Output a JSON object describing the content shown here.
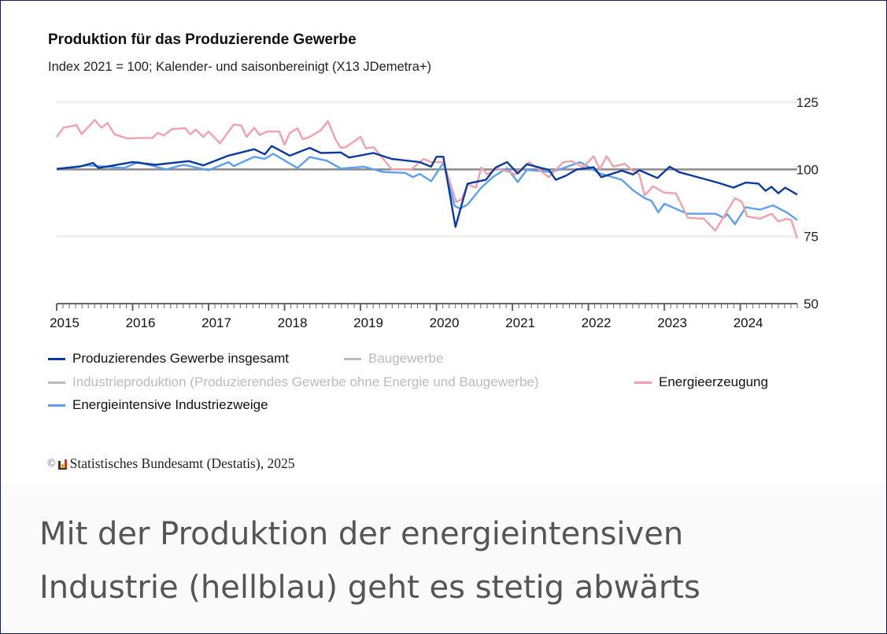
{
  "chart_data": {
    "type": "line",
    "title": "Produktion für das Produzierende Gewerbe",
    "subtitle": "Index 2021 = 100; Kalender- und saisonbereinigt (X13 JDemetra+)",
    "xlabel": "",
    "ylabel": "",
    "xlim": [
      2015.0,
      2024.75
    ],
    "ylim": [
      50,
      125
    ],
    "x_ticks": [
      "2015",
      "2016",
      "2017",
      "2018",
      "2019",
      "2020",
      "2021",
      "2022",
      "2023",
      "2024"
    ],
    "y_ticks": [
      "125",
      "100",
      "75",
      "50"
    ],
    "reference_line": 100,
    "grid": true,
    "legend_placement": "bottom",
    "series": [
      {
        "name": "Produzierendes Gewerbe insgesamt",
        "color": "#0b3a9e",
        "visible": true,
        "points": [
          [
            2015.0,
            100.2
          ],
          [
            2015.3,
            101
          ],
          [
            2015.48,
            102.4
          ],
          [
            2015.55,
            100.5
          ],
          [
            2016.0,
            102.7
          ],
          [
            2016.3,
            101.7
          ],
          [
            2016.74,
            103.1
          ],
          [
            2016.93,
            101.5
          ],
          [
            2017.26,
            105.1
          ],
          [
            2017.6,
            107.5
          ],
          [
            2017.74,
            105.6
          ],
          [
            2017.83,
            108.7
          ],
          [
            2018.07,
            105.1
          ],
          [
            2018.33,
            108
          ],
          [
            2018.48,
            106.1
          ],
          [
            2018.74,
            106.3
          ],
          [
            2018.85,
            104.4
          ],
          [
            2019.17,
            106.1
          ],
          [
            2019.41,
            103.9
          ],
          [
            2019.78,
            102.7
          ],
          [
            2019.93,
            101
          ],
          [
            2020.0,
            104.7
          ],
          [
            2020.09,
            104.7
          ],
          [
            2020.25,
            78.6
          ],
          [
            2020.41,
            94.7
          ],
          [
            2020.65,
            96.1
          ],
          [
            2020.78,
            100.7
          ],
          [
            2020.93,
            102.7
          ],
          [
            2021.07,
            98.5
          ],
          [
            2021.19,
            101.9
          ],
          [
            2021.48,
            99.8
          ],
          [
            2021.57,
            96.1
          ],
          [
            2021.7,
            97.6
          ],
          [
            2021.85,
            100
          ],
          [
            2022.07,
            100.8
          ],
          [
            2022.17,
            97.1
          ],
          [
            2022.44,
            99.5
          ],
          [
            2022.59,
            98.1
          ],
          [
            2022.67,
            99.7
          ],
          [
            2022.91,
            96.8
          ],
          [
            2023.07,
            101
          ],
          [
            2023.19,
            99
          ],
          [
            2023.41,
            97.3
          ],
          [
            2023.7,
            95.1
          ],
          [
            2023.91,
            93.2
          ],
          [
            2024.07,
            95.1
          ],
          [
            2024.24,
            94.7
          ],
          [
            2024.33,
            92
          ],
          [
            2024.41,
            93.5
          ],
          [
            2024.5,
            91.1
          ],
          [
            2024.59,
            93.2
          ],
          [
            2024.75,
            90.6
          ]
        ]
      },
      {
        "name": "Baugewerbe",
        "color": "#bbbbbb",
        "visible": false,
        "points": []
      },
      {
        "name": "Industrieproduktion (Produzierendes Gewerbe ohne Energie und Baugewerbe)",
        "color": "#bbbbbb",
        "visible": false,
        "points": []
      },
      {
        "name": "Energieerzeugung",
        "color": "#f2a0aa",
        "visible": true,
        "points": [
          [
            2015.0,
            112.1
          ],
          [
            2015.09,
            115.5
          ],
          [
            2015.26,
            116.5
          ],
          [
            2015.33,
            113.1
          ],
          [
            2015.5,
            118.4
          ],
          [
            2015.59,
            115.5
          ],
          [
            2015.67,
            117.3
          ],
          [
            2015.76,
            113.1
          ],
          [
            2015.93,
            111.5
          ],
          [
            2016.07,
            111.7
          ],
          [
            2016.26,
            111.7
          ],
          [
            2016.33,
            113.6
          ],
          [
            2016.41,
            112.6
          ],
          [
            2016.52,
            115
          ],
          [
            2016.69,
            115.3
          ],
          [
            2016.76,
            113.1
          ],
          [
            2016.83,
            114.8
          ],
          [
            2016.93,
            112.1
          ],
          [
            2017.0,
            114.1
          ],
          [
            2017.15,
            109.7
          ],
          [
            2017.33,
            116.7
          ],
          [
            2017.43,
            116.3
          ],
          [
            2017.5,
            112.1
          ],
          [
            2017.6,
            115.5
          ],
          [
            2017.67,
            112.8
          ],
          [
            2017.78,
            114.1
          ],
          [
            2017.93,
            114.1
          ],
          [
            2018.0,
            109.2
          ],
          [
            2018.07,
            113.6
          ],
          [
            2018.17,
            115.3
          ],
          [
            2018.24,
            111.2
          ],
          [
            2018.33,
            112.1
          ],
          [
            2018.48,
            114.6
          ],
          [
            2018.57,
            118
          ],
          [
            2018.67,
            111.2
          ],
          [
            2018.74,
            108
          ],
          [
            2018.81,
            108.3
          ],
          [
            2019.0,
            112.1
          ],
          [
            2019.07,
            107.8
          ],
          [
            2019.17,
            108.3
          ],
          [
            2019.26,
            105.3
          ],
          [
            2019.41,
            100
          ],
          [
            2019.67,
            100
          ],
          [
            2019.83,
            103.9
          ],
          [
            2019.93,
            102.7
          ],
          [
            2020.09,
            102.7
          ],
          [
            2020.26,
            87.9
          ],
          [
            2020.33,
            88.8
          ],
          [
            2020.41,
            94.4
          ],
          [
            2020.52,
            93.2
          ],
          [
            2020.59,
            100.7
          ],
          [
            2020.67,
            98.1
          ],
          [
            2020.78,
            100.5
          ],
          [
            2020.96,
            99
          ],
          [
            2021.04,
            98.1
          ],
          [
            2021.22,
            102.7
          ],
          [
            2021.48,
            97.1
          ],
          [
            2021.67,
            102.7
          ],
          [
            2021.78,
            103.1
          ],
          [
            2021.93,
            100.8
          ],
          [
            2022.07,
            104.9
          ],
          [
            2022.15,
            100
          ],
          [
            2022.24,
            104.9
          ],
          [
            2022.33,
            101
          ],
          [
            2022.48,
            102.1
          ],
          [
            2022.56,
            100
          ],
          [
            2022.67,
            98.1
          ],
          [
            2022.74,
            90.3
          ],
          [
            2022.85,
            93.7
          ],
          [
            2023.0,
            91.3
          ],
          [
            2023.15,
            91.1
          ],
          [
            2023.31,
            82
          ],
          [
            2023.52,
            81.6
          ],
          [
            2023.67,
            77.2
          ],
          [
            2023.93,
            89.3
          ],
          [
            2024.02,
            87.9
          ],
          [
            2024.09,
            82.5
          ],
          [
            2024.26,
            81.6
          ],
          [
            2024.41,
            83.5
          ],
          [
            2024.5,
            80.6
          ],
          [
            2024.61,
            81.6
          ],
          [
            2024.67,
            81.1
          ],
          [
            2024.75,
            74.3
          ]
        ]
      },
      {
        "name": "Energieintensive Industriezweige",
        "color": "#5b9ff0",
        "visible": true,
        "points": [
          [
            2015.0,
            100.2
          ],
          [
            2015.4,
            101.5
          ],
          [
            2015.89,
            100.5
          ],
          [
            2016.07,
            102.7
          ],
          [
            2016.44,
            100
          ],
          [
            2016.67,
            101.7
          ],
          [
            2017.0,
            99.7
          ],
          [
            2017.26,
            102.7
          ],
          [
            2017.33,
            101.2
          ],
          [
            2017.6,
            104.7
          ],
          [
            2017.74,
            103.9
          ],
          [
            2017.85,
            105.8
          ],
          [
            2018.17,
            100.5
          ],
          [
            2018.33,
            104.6
          ],
          [
            2018.56,
            103.2
          ],
          [
            2018.74,
            100.3
          ],
          [
            2019.04,
            101
          ],
          [
            2019.3,
            99
          ],
          [
            2019.59,
            98.7
          ],
          [
            2019.69,
            97.1
          ],
          [
            2019.78,
            98.3
          ],
          [
            2019.93,
            95.6
          ],
          [
            2020.09,
            102.4
          ],
          [
            2020.24,
            86.4
          ],
          [
            2020.31,
            85.4
          ],
          [
            2020.41,
            86.9
          ],
          [
            2020.59,
            93.2
          ],
          [
            2020.74,
            97.1
          ],
          [
            2020.93,
            100.5
          ],
          [
            2021.07,
            95.3
          ],
          [
            2021.19,
            99.8
          ],
          [
            2021.52,
            99
          ],
          [
            2021.89,
            102.7
          ],
          [
            2022.15,
            98.5
          ],
          [
            2022.44,
            96.1
          ],
          [
            2022.59,
            92.2
          ],
          [
            2022.74,
            89.3
          ],
          [
            2022.83,
            88.3
          ],
          [
            2022.92,
            84
          ],
          [
            2023.0,
            87.2
          ],
          [
            2023.3,
            83.5
          ],
          [
            2023.67,
            83.5
          ],
          [
            2023.78,
            82
          ],
          [
            2023.83,
            83.3
          ],
          [
            2023.93,
            79.6
          ],
          [
            2024.07,
            85.9
          ],
          [
            2024.26,
            85
          ],
          [
            2024.43,
            86.6
          ],
          [
            2024.54,
            85
          ],
          [
            2024.61,
            84
          ],
          [
            2024.75,
            81.1
          ]
        ]
      }
    ]
  },
  "legend": [
    {
      "label": "Produzierendes Gewerbe insgesamt",
      "color": "#0b3a9e",
      "text_color": "#111111"
    },
    {
      "label": "Baugewerbe",
      "color": "#bbbbbb",
      "text_color": "#bbbbbb"
    },
    {
      "label": "Industrieproduktion (Produzierendes Gewerbe ohne Energie und Baugewerbe)",
      "color": "#bbbbbb",
      "text_color": "#bbbbbb"
    },
    {
      "label": "Energieerzeugung",
      "color": "#f2a0aa",
      "text_color": "#111111"
    },
    {
      "label": "Energieintensive Industriezweige",
      "color": "#5b9ff0",
      "text_color": "#111111"
    }
  ],
  "source": {
    "copyright_symbol": "©",
    "text": "Statistisches Bundesamt (Destatis), 2025"
  },
  "caption": "Mit der Produktion der energieintensiven Industrie (hellblau) geht es stetig abwärts"
}
